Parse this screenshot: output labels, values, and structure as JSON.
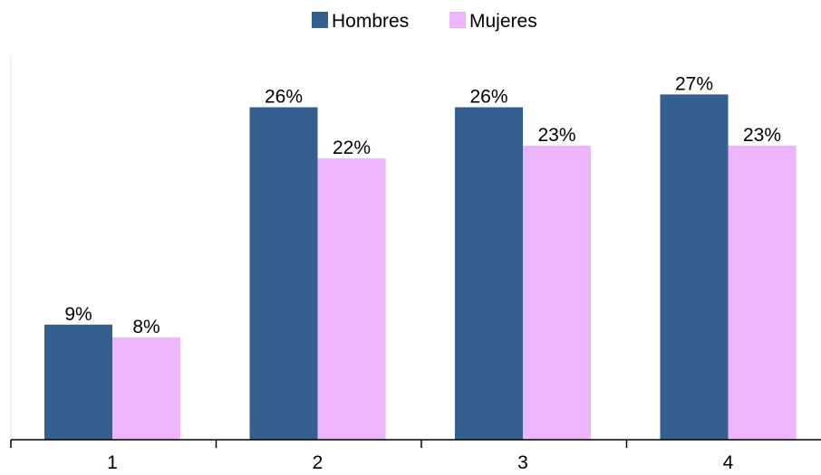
{
  "chart_data": {
    "type": "bar",
    "categories": [
      "1",
      "2",
      "3",
      "4"
    ],
    "series": [
      {
        "name": "Hombres",
        "color": "#355F8E",
        "values": [
          9,
          26,
          26,
          27
        ],
        "labels": [
          "9%",
          "26%",
          "26%",
          "27%"
        ]
      },
      {
        "name": "Mujeres",
        "color": "#EDB5FB",
        "values": [
          8,
          22,
          23,
          23
        ],
        "labels": [
          "8%",
          "22%",
          "23%",
          "23%"
        ]
      }
    ],
    "ylim": [
      0,
      30
    ],
    "grid": false,
    "legend_position": "top-center"
  }
}
